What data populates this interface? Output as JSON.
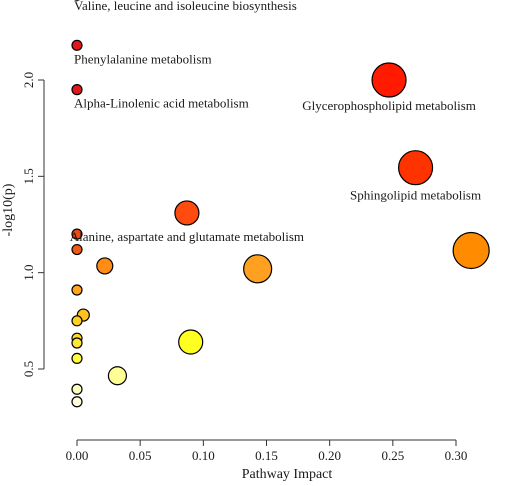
{
  "chart_data": {
    "type": "scatter",
    "title": "",
    "xlabel": "Pathway Impact",
    "ylabel": "-log10(p)",
    "xlim": [
      -0.002,
      0.33
    ],
    "ylim": [
      0.25,
      2.5
    ],
    "xticks": [
      0,
      0.05,
      0.1,
      0.15,
      0.2,
      0.25,
      0.3
    ],
    "xtick_labels": [
      "0.00",
      "0.05",
      "0.10",
      "0.15",
      "0.20",
      "0.25",
      "0.30"
    ],
    "yticks": [
      0.5,
      1.0,
      1.5,
      2.0
    ],
    "ytick_labels": [
      "0.5",
      "1.0",
      "1.5",
      "2.0"
    ],
    "grid": false,
    "points": [
      {
        "x": 0.0,
        "y": 2.44,
        "size": 5,
        "color": "#e0171b",
        "label": "Valine, leucine and isoleucine biosynthesis"
      },
      {
        "x": 0.0,
        "y": 2.18,
        "size": 5,
        "color": "#e0171b",
        "label": "Phenylalanine metabolism"
      },
      {
        "x": 0.0,
        "y": 1.95,
        "size": 5,
        "color": "#e0171b",
        "label": "Alpha-Linolenic acid metabolism"
      },
      {
        "x": 0.247,
        "y": 2.0,
        "size": 17,
        "color": "#ff1a00",
        "label": "Glycerophospholipid metabolism"
      },
      {
        "x": 0.268,
        "y": 1.545,
        "size": 17,
        "color": "#ff3300",
        "label": "Sphingolipid metabolism"
      },
      {
        "x": 0.0,
        "y": 1.2,
        "size": 5,
        "color": "#f04a14",
        "label": ""
      },
      {
        "x": 0.087,
        "y": 1.31,
        "size": 12,
        "color": "#ff4a10",
        "label": "Alanine, aspartate and glutamate metabolism"
      },
      {
        "x": 0.0,
        "y": 1.12,
        "size": 5,
        "color": "#f05a14",
        "label": ""
      },
      {
        "x": 0.022,
        "y": 1.035,
        "size": 8,
        "color": "#ff8c14",
        "label": ""
      },
      {
        "x": 0.143,
        "y": 1.02,
        "size": 14,
        "color": "#ffa020",
        "label": ""
      },
      {
        "x": 0.312,
        "y": 1.115,
        "size": 18,
        "color": "#ff8c00",
        "label": ""
      },
      {
        "x": 0.0,
        "y": 0.91,
        "size": 5,
        "color": "#ffa51e",
        "label": ""
      },
      {
        "x": 0.005,
        "y": 0.78,
        "size": 6,
        "color": "#ffc21e",
        "label": ""
      },
      {
        "x": 0.0,
        "y": 0.75,
        "size": 5,
        "color": "#ffd020",
        "label": ""
      },
      {
        "x": 0.0,
        "y": 0.66,
        "size": 5,
        "color": "#ffdc32",
        "label": ""
      },
      {
        "x": 0.0,
        "y": 0.635,
        "size": 5,
        "color": "#ffe632",
        "label": ""
      },
      {
        "x": 0.09,
        "y": 0.64,
        "size": 12,
        "color": "#ffff20",
        "label": ""
      },
      {
        "x": 0.0,
        "y": 0.555,
        "size": 5,
        "color": "#ffff3c",
        "label": ""
      },
      {
        "x": 0.032,
        "y": 0.465,
        "size": 9,
        "color": "#ffff96",
        "label": ""
      },
      {
        "x": 0.0,
        "y": 0.395,
        "size": 5,
        "color": "#ffffbe",
        "label": ""
      },
      {
        "x": 0.0,
        "y": 0.33,
        "size": 5,
        "color": "#ffffdc",
        "label": ""
      }
    ]
  }
}
